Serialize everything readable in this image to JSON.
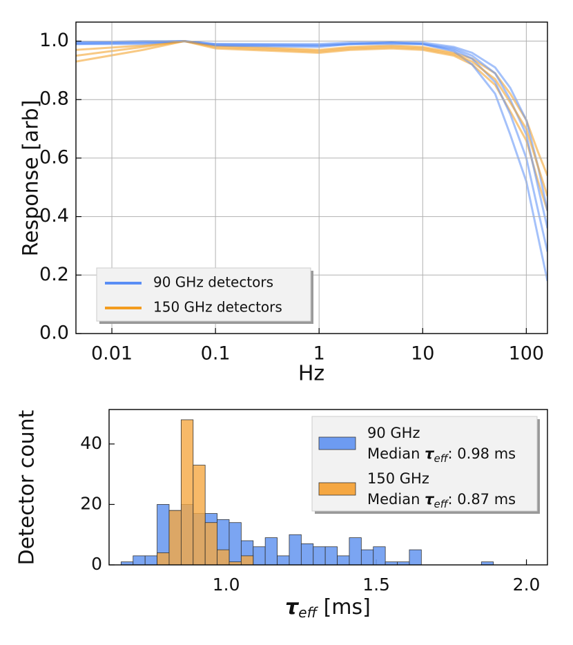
{
  "chart_data": [
    {
      "type": "line",
      "xscale": "log",
      "xlabel": "Hz",
      "ylabel": "Response [arb]",
      "x": [
        0.0045,
        0.02,
        0.05,
        0.1,
        1,
        2,
        5,
        10,
        20,
        30,
        50,
        70,
        100,
        130,
        160
      ],
      "xlim": [
        0.0045,
        160
      ],
      "xticks": [
        0.01,
        0.1,
        1,
        10,
        100
      ],
      "ylim": [
        0,
        1.065
      ],
      "yticks": [
        {
          "value": 0,
          "label": "0.0"
        },
        0.2,
        0.4,
        0.6,
        0.8,
        {
          "value": 1,
          "label": "1.0"
        }
      ],
      "grid": true,
      "legend": "lower left",
      "series": [
        {
          "color": "#f39c1f",
          "values": [
            0.93,
            0.97,
            1.0,
            0.975,
            0.96,
            0.97,
            0.975,
            0.97,
            0.95,
            0.92,
            0.85,
            0.76,
            0.66,
            0.52,
            0.42
          ]
        },
        {
          "color": "#f39c1f",
          "values": [
            0.97,
            0.985,
            1.0,
            0.985,
            0.97,
            0.98,
            0.985,
            0.98,
            0.96,
            0.94,
            0.89,
            0.82,
            0.73,
            0.62,
            0.54
          ]
        },
        {
          "color": "#5a8ef5",
          "values": [
            0.99,
            0.995,
            1.0,
            0.985,
            0.98,
            0.99,
            0.995,
            0.99,
            0.965,
            0.92,
            0.82,
            0.68,
            0.52,
            0.33,
            0.18
          ]
        },
        {
          "color": "#5a8ef5",
          "values": [
            0.99,
            0.99,
            1.0,
            0.985,
            0.985,
            0.99,
            0.99,
            0.99,
            0.975,
            0.95,
            0.89,
            0.8,
            0.68,
            0.5,
            0.36
          ]
        },
        {
          "color": "#5a8ef5",
          "values": [
            0.995,
            1.0,
            1.0,
            0.99,
            0.99,
            0.995,
            0.995,
            0.995,
            0.98,
            0.96,
            0.91,
            0.84,
            0.73,
            0.57,
            0.42
          ]
        },
        {
          "name": "90 GHz detectors",
          "color": "#5a8ef5",
          "values": [
            0.995,
            0.995,
            1.0,
            0.99,
            0.985,
            0.99,
            0.995,
            0.99,
            0.97,
            0.94,
            0.86,
            0.75,
            0.6,
            0.42,
            0.28
          ]
        },
        {
          "name": "150 GHz detectors",
          "color": "#f39c1f",
          "values": [
            0.95,
            0.98,
            1.0,
            0.98,
            0.965,
            0.975,
            0.98,
            0.975,
            0.955,
            0.93,
            0.87,
            0.79,
            0.7,
            0.57,
            0.47
          ]
        }
      ]
    },
    {
      "type": "histogram",
      "ylabel": "Detector count",
      "xlabel": {
        "symbol": "τ",
        "subscript": "eff",
        "unit": " [ms]"
      },
      "bins": [
        0.65,
        0.69,
        0.73,
        0.77,
        0.81,
        0.85,
        0.89,
        0.93,
        0.97,
        1.01,
        1.05,
        1.09,
        1.13,
        1.17,
        1.21,
        1.25,
        1.29,
        1.33,
        1.37,
        1.41,
        1.45,
        1.49,
        1.53,
        1.57,
        1.61,
        1.65,
        1.69,
        1.73,
        1.77,
        1.81,
        1.85,
        1.89
      ],
      "xlim": [
        0.61,
        2.07
      ],
      "xticks": [
        {
          "value": 1,
          "label": "1.0"
        },
        1.5,
        {
          "value": 2,
          "label": "2.0"
        }
      ],
      "ylim": [
        0,
        51.4
      ],
      "yticks": [
        0,
        20,
        40
      ],
      "grid": false,
      "legend": "upper right",
      "series": [
        {
          "name": "90 GHz",
          "color": "#6d9bf1",
          "median_label": {
            "prefix": "Median ",
            "symbol": "τ",
            "subscript": "eff",
            "suffix": ": 0.98 ms"
          },
          "values": [
            1,
            3,
            3,
            20,
            18,
            20,
            17,
            17,
            15,
            14,
            8,
            6,
            9,
            3,
            10,
            7,
            6,
            6,
            3,
            9,
            5,
            6,
            1,
            1,
            5,
            0,
            0,
            0,
            0,
            0,
            1
          ]
        },
        {
          "name": "150 GHz",
          "color": "#f5a742",
          "median_label": {
            "prefix": "Median ",
            "symbol": "τ",
            "subscript": "eff",
            "suffix": ": 0.87 ms"
          },
          "values": [
            0,
            0,
            0,
            4,
            18,
            48,
            33,
            14,
            5,
            1,
            3,
            0,
            0,
            0,
            0,
            0,
            0,
            0,
            0,
            0,
            0,
            0,
            0,
            0,
            0,
            0,
            0,
            0,
            0,
            0,
            0
          ]
        }
      ]
    }
  ]
}
